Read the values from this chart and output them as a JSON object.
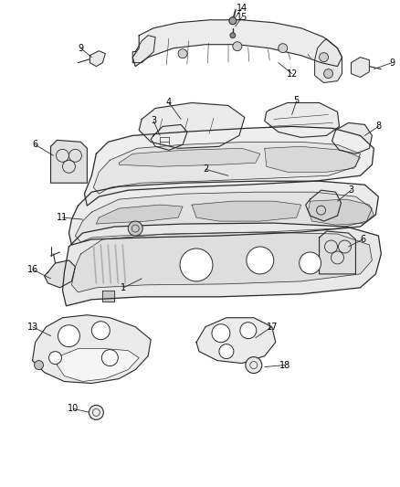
{
  "bg_color": "#ffffff",
  "line_color": "#2a2a2a",
  "fig_width": 4.38,
  "fig_height": 5.33,
  "dpi": 100
}
